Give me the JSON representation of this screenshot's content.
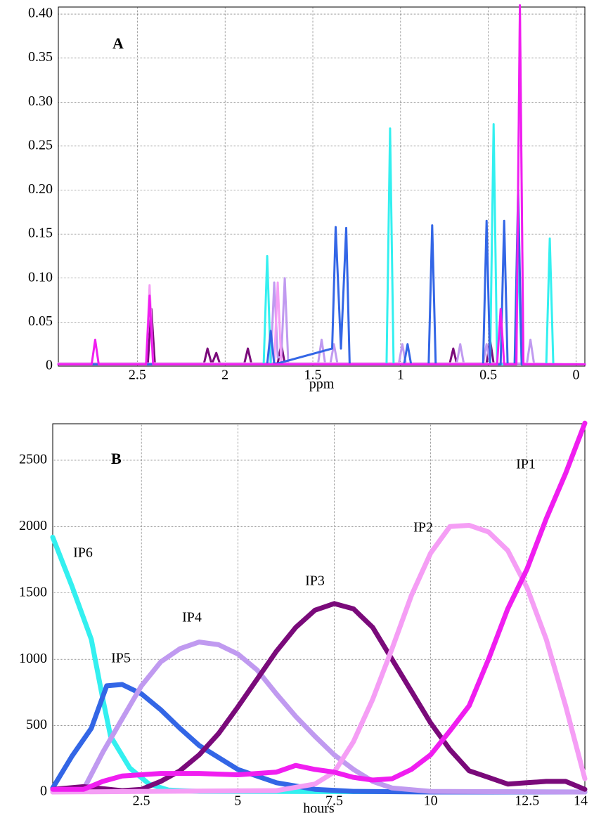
{
  "chart_data": [
    {
      "type": "line",
      "annotation": "A",
      "x_label": "ppm",
      "xlim": [
        2.95,
        -0.05
      ],
      "xticks": [
        2.5,
        2,
        1.5,
        1,
        0.5,
        0
      ],
      "ylim": [
        0,
        0.408
      ],
      "yticks": [
        0,
        0.05,
        {
          "value": 0.1,
          "label": "0.10"
        },
        0.15,
        {
          "value": 0.2,
          "label": "0.20"
        },
        0.25,
        {
          "value": 0.3,
          "label": "0.30"
        },
        0.35,
        {
          "value": 0.4,
          "label": "0.40"
        }
      ],
      "grid": true,
      "line_width": 3,
      "series": [
        {
          "color": "#7a0a7a",
          "x": [
            2.95,
            2.44,
            2.42,
            2.4,
            2.12,
            2.1,
            2.08,
            2.07,
            2.05,
            2.03,
            1.89,
            1.87,
            1.85,
            1.7,
            1.68,
            1.66,
            0.72,
            0.7,
            0.68,
            0.51,
            0.49,
            0.47,
            -0.05
          ],
          "values": [
            0.003,
            0.003,
            0.065,
            0.003,
            0.003,
            0.02,
            0.005,
            0.005,
            0.015,
            0.003,
            0.003,
            0.02,
            0.003,
            0.003,
            0.025,
            0.003,
            0.003,
            0.02,
            0.003,
            0.003,
            0.03,
            0.003,
            0.002
          ]
        },
        {
          "color": "#c09af0",
          "x": [
            2.95,
            1.74,
            1.72,
            1.7,
            1.68,
            1.66,
            1.64,
            1.47,
            1.45,
            1.43,
            1.4,
            1.38,
            1.36,
            1.01,
            0.99,
            0.97,
            0.68,
            0.66,
            0.64,
            0.53,
            0.51,
            0.49,
            0.28,
            0.26,
            0.24,
            -0.05
          ],
          "values": [
            0.003,
            0.003,
            0.095,
            0.01,
            0.01,
            0.1,
            0.003,
            0.003,
            0.03,
            0.003,
            0.003,
            0.025,
            0.003,
            0.003,
            0.025,
            0.003,
            0.003,
            0.025,
            0.003,
            0.003,
            0.025,
            0.003,
            0.003,
            0.03,
            0.003,
            0.002
          ]
        },
        {
          "color": "#f59ef5",
          "x": [
            2.95,
            2.45,
            2.43,
            2.41,
            1.72,
            1.7,
            1.68,
            0.34,
            0.32,
            0.3,
            -0.05
          ],
          "values": [
            0.003,
            0.003,
            0.092,
            0.003,
            0.003,
            0.095,
            0.003,
            0.003,
            0.4,
            0.003,
            0.002
          ]
        },
        {
          "color": "#33f0f0",
          "x": [
            2.95,
            1.78,
            1.76,
            1.74,
            1.08,
            1.06,
            1.04,
            0.49,
            0.47,
            0.45,
            0.35,
            0.33,
            0.31,
            0.17,
            0.15,
            0.13,
            -0.05
          ],
          "values": [
            0.002,
            0.002,
            0.125,
            0.002,
            0.002,
            0.27,
            0.002,
            0.002,
            0.275,
            0.002,
            0.002,
            0.12,
            0.002,
            0.002,
            0.145,
            0.002,
            0.002
          ]
        },
        {
          "color": "#3366e6",
          "x": [
            2.95,
            1.76,
            1.74,
            1.72,
            1.39,
            1.37,
            1.34,
            1.31,
            1.29,
            0.98,
            0.96,
            0.94,
            0.84,
            0.82,
            0.8,
            0.53,
            0.51,
            0.49,
            0.43,
            0.41,
            0.39,
            0.35,
            0.33,
            0.31,
            -0.05
          ],
          "values": [
            0.002,
            0.002,
            0.04,
            0.002,
            0.02,
            0.158,
            0.02,
            0.157,
            0.002,
            0.002,
            0.025,
            0.002,
            0.002,
            0.16,
            0.002,
            0.002,
            0.165,
            0.002,
            0.002,
            0.165,
            0.002,
            0.002,
            0.2,
            0.002,
            0.002
          ]
        },
        {
          "color": "#f01ef0",
          "x": [
            2.95,
            2.76,
            2.74,
            2.72,
            2.45,
            2.43,
            2.41,
            0.45,
            0.43,
            0.41,
            0.34,
            0.32,
            0.3,
            -0.05
          ],
          "values": [
            0.002,
            0.002,
            0.03,
            0.002,
            0.002,
            0.08,
            0.002,
            0.002,
            0.065,
            0.002,
            0.002,
            0.41,
            0.002,
            0.002
          ]
        }
      ]
    },
    {
      "type": "line",
      "annotation": "B",
      "x_label": "hours",
      "xlim": [
        0.2,
        14
      ],
      "xticks": [
        2.5,
        5,
        7.5,
        10,
        12.5,
        14
      ],
      "ylim": [
        0,
        2775
      ],
      "yticks": [
        0,
        500,
        1000,
        1500,
        2000,
        2500
      ],
      "grid": true,
      "line_width": 7,
      "series": [
        {
          "name": "IP6",
          "color": "#33f0f0",
          "x": [
            0.2,
            0.7,
            1.2,
            1.5,
            1.7,
            2.2,
            2.7,
            3.2,
            4,
            14
          ],
          "values": [
            1920,
            1550,
            1150,
            700,
            420,
            180,
            60,
            15,
            5,
            0
          ]
        },
        {
          "name": "IP5",
          "color": "#3366e6",
          "x": [
            0.2,
            0.7,
            1.2,
            1.6,
            2,
            2.5,
            3,
            3.5,
            4,
            5,
            6,
            7,
            8,
            10,
            14
          ],
          "values": [
            30,
            270,
            480,
            800,
            810,
            740,
            620,
            480,
            350,
            170,
            70,
            20,
            5,
            0,
            0
          ]
        },
        {
          "name": "IP4",
          "color": "#c09af0",
          "x": [
            0.2,
            1,
            1.5,
            2,
            2.5,
            3,
            3.5,
            4,
            4.5,
            5,
            5.5,
            6,
            6.5,
            7,
            7.5,
            8,
            8.5,
            9,
            10,
            14
          ],
          "values": [
            0,
            20,
            300,
            550,
            800,
            980,
            1080,
            1130,
            1110,
            1040,
            920,
            740,
            570,
            420,
            280,
            170,
            80,
            30,
            5,
            0
          ]
        },
        {
          "name": "IP3",
          "color": "#7a0a7a",
          "x": [
            0.2,
            1,
            2,
            2.5,
            3,
            3.5,
            4,
            4.5,
            5,
            5.5,
            6,
            6.5,
            7,
            7.5,
            8,
            8.5,
            9,
            9.5,
            10,
            10.5,
            11,
            11.5,
            12,
            12.5,
            13,
            13.5,
            14
          ],
          "values": [
            20,
            40,
            10,
            20,
            80,
            160,
            280,
            440,
            640,
            850,
            1060,
            1240,
            1370,
            1420,
            1380,
            1240,
            1000,
            760,
            520,
            320,
            160,
            110,
            60,
            70,
            80,
            80,
            20
          ]
        },
        {
          "name": "IP2",
          "color": "#f59ef5",
          "x": [
            0.2,
            6,
            7,
            7.5,
            8,
            8.5,
            9,
            9.5,
            10,
            10.5,
            11,
            11.5,
            12,
            12.5,
            13,
            13.5,
            14
          ],
          "values": [
            0,
            10,
            60,
            150,
            380,
            700,
            1080,
            1480,
            1800,
            2000,
            2010,
            1960,
            1820,
            1540,
            1150,
            650,
            100
          ]
        },
        {
          "name": "IP1",
          "color": "#f01ef0",
          "x": [
            0.2,
            1,
            1.5,
            2,
            3,
            4,
            5,
            6,
            6.5,
            7,
            7.5,
            8,
            8.5,
            9,
            9.5,
            10,
            10.5,
            11,
            11.5,
            12,
            12.5,
            13,
            13.5,
            14
          ],
          "values": [
            20,
            20,
            80,
            120,
            140,
            140,
            130,
            150,
            200,
            170,
            150,
            110,
            90,
            100,
            170,
            280,
            460,
            650,
            1000,
            1380,
            1680,
            2060,
            2400,
            2780
          ]
        }
      ]
    }
  ]
}
